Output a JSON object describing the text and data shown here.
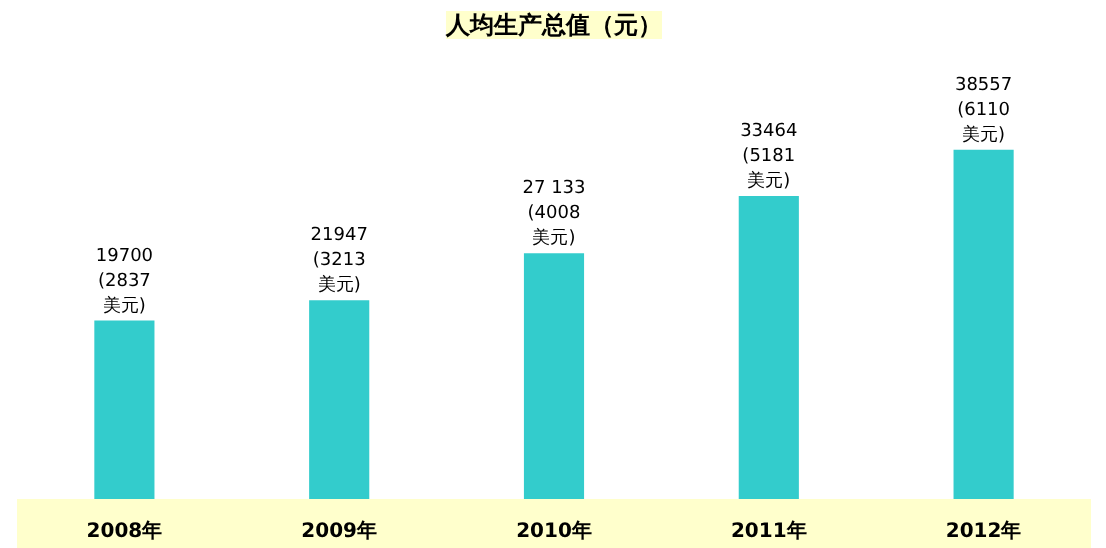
{
  "chart_data": {
    "type": "bar",
    "title": "人均生产总值（元）",
    "categories": [
      "2008年",
      "2009年",
      "2010年",
      "2011年",
      "2012年"
    ],
    "values": [
      19700,
      21947,
      27133,
      33464,
      38557
    ],
    "value_labels": [
      "19700\n(2837\n美元)",
      "21947\n(3213\n美元)",
      "27 133\n(4008\n美元)",
      "33464\n(5181\n美元)",
      "38557\n(6110\n美元)"
    ],
    "color": "#33cccc",
    "grid": false
  }
}
